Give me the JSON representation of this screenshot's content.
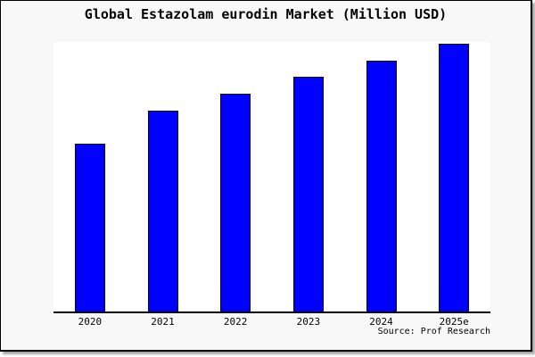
{
  "figure": {
    "title": "Global Estazolam eurodin Market (Million USD)",
    "source": "Source: Prof Research"
  },
  "chart_data": {
    "type": "bar",
    "title": "Global Estazolam eurodin Market (Million USD)",
    "unit": "Million USD",
    "categories": [
      "2020",
      "2021",
      "2022",
      "2023",
      "2024",
      "2025e"
    ],
    "values": [
      62.7,
      75.0,
      81.4,
      87.7,
      93.7,
      100.0
    ],
    "values_note": "no y-axis scale shown in image; values are relative bar heights with 2025e = 100",
    "xlabel": "",
    "ylabel": "",
    "ylim": [
      0,
      100.8
    ],
    "grid": false,
    "legend": null,
    "source": "Source: Prof Research",
    "colors": {
      "bar_fill": "#0000ff",
      "bar_border": "#000000",
      "figure_background": "#f8f8f8",
      "plot_background": "#ffffff",
      "axis_line": "#000000",
      "text": "#000000"
    }
  }
}
